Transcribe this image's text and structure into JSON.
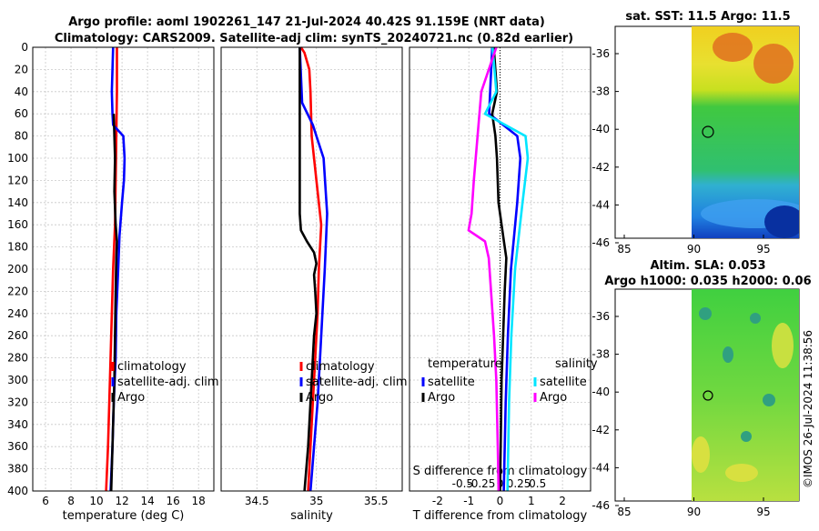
{
  "title": {
    "line1": "Argo profile: aoml 1902261_147 21-Jul-2024 40.42S 91.159E (NRT data)",
    "line2": "Climatology: CARS2009. Satellite-adj clim: synTS_20240721.nc (0.82d earlier)"
  },
  "colors": {
    "climatology": "#ff0000",
    "satellite": "#0000ff",
    "argo": "#000000",
    "sat_salinity": "#00e5ff",
    "argo_salinity": "#ff00ff"
  },
  "depth_ticks": [
    "0",
    "20",
    "40",
    "60",
    "80",
    "100",
    "120",
    "140",
    "160",
    "180",
    "200",
    "220",
    "240",
    "260",
    "280",
    "300",
    "320",
    "340",
    "360",
    "380",
    "400"
  ],
  "chart_data": [
    {
      "type": "line",
      "panel": "temperature",
      "xlabel": "temperature (deg C)",
      "xlim": [
        5,
        19.2
      ],
      "xticks": [
        "6",
        "8",
        "10",
        "12",
        "14",
        "16",
        "18"
      ],
      "ylim": [
        0,
        400
      ],
      "grid": true,
      "legend": {
        "position": "lower-right",
        "entries": [
          "climatology",
          "satellite-adj. clim",
          "Argo"
        ]
      },
      "series": [
        {
          "name": "climatology",
          "color": "#ff0000",
          "depth": [
            0,
            40,
            80,
            120,
            160,
            200,
            240,
            280,
            320,
            360,
            400
          ],
          "values": [
            11.6,
            11.6,
            11.55,
            11.5,
            11.45,
            11.3,
            11.2,
            11.1,
            11.0,
            10.9,
            10.75
          ]
        },
        {
          "name": "satellite-adj. clim",
          "color": "#0000ff",
          "depth": [
            0,
            40,
            60,
            70,
            80,
            100,
            120,
            140,
            170,
            200,
            240,
            280,
            320,
            360,
            400
          ],
          "values": [
            11.3,
            11.2,
            11.25,
            11.3,
            12.1,
            12.2,
            12.15,
            12.0,
            11.8,
            11.7,
            11.55,
            11.5,
            11.35,
            11.25,
            11.1
          ]
        },
        {
          "name": "Argo",
          "color": "#000000",
          "depth": [
            60,
            80,
            100,
            130,
            160,
            175,
            190,
            220,
            260,
            300,
            340,
            380,
            400
          ],
          "values": [
            11.35,
            11.4,
            11.45,
            11.4,
            11.5,
            11.6,
            11.55,
            11.5,
            11.45,
            11.4,
            11.3,
            11.2,
            11.15
          ]
        }
      ]
    },
    {
      "type": "line",
      "panel": "salinity",
      "xlabel": "salinity",
      "xlim": [
        34.2,
        35.72
      ],
      "xticks": [
        "34.5",
        "35",
        "35.5"
      ],
      "ylim": [
        0,
        400
      ],
      "grid": true,
      "legend": {
        "position": "lower-right",
        "entries": [
          "climatology",
          "satellite-adj. clim",
          "Argo"
        ]
      },
      "series": [
        {
          "name": "climatology",
          "color": "#ff0000",
          "depth": [
            0,
            5,
            20,
            40,
            80,
            120,
            160,
            200,
            240,
            280,
            320,
            360,
            400
          ],
          "values": [
            34.87,
            34.9,
            34.94,
            34.95,
            34.96,
            35.0,
            35.04,
            35.02,
            35.01,
            34.99,
            34.97,
            34.95,
            34.93
          ]
        },
        {
          "name": "satellite-adj. clim",
          "color": "#0000ff",
          "depth": [
            0,
            50,
            70,
            80,
            100,
            150,
            200,
            240,
            280,
            320,
            360,
            400
          ],
          "values": [
            34.86,
            34.88,
            34.97,
            35.0,
            35.06,
            35.09,
            35.07,
            35.05,
            35.03,
            35.01,
            34.98,
            34.95
          ]
        },
        {
          "name": "Argo",
          "color": "#000000",
          "depth": [
            0,
            50,
            100,
            150,
            165,
            175,
            185,
            195,
            205,
            220,
            240,
            260,
            280,
            320,
            360,
            400
          ],
          "values": [
            34.86,
            34.86,
            34.86,
            34.86,
            34.87,
            34.92,
            34.98,
            35.0,
            34.98,
            34.99,
            35.0,
            34.98,
            34.97,
            34.95,
            34.93,
            34.9
          ]
        }
      ]
    },
    {
      "type": "line",
      "panel": "difference",
      "xlabel": "T difference from climatology",
      "x2label": "S difference from climatology",
      "xlim": [
        -2.9,
        2.9
      ],
      "xticks": [
        "-2",
        "-1",
        "0",
        "1",
        "2"
      ],
      "x2ticks": [
        "-0.5",
        "-0.25",
        "0",
        "0.25",
        "0.5"
      ],
      "ylim": [
        0,
        400
      ],
      "grid": true,
      "legend": {
        "position": "lower",
        "temperature_title": "temperature",
        "salinity_title": "salinity",
        "temperature_entries": [
          "satellite",
          "Argo"
        ],
        "salinity_entries": [
          "satellite",
          "Argo"
        ]
      },
      "series": [
        {
          "name": "temperature satellite",
          "color": "#0000ff",
          "depth": [
            0,
            60,
            80,
            100,
            140,
            200,
            260,
            320,
            400
          ],
          "values": [
            -0.25,
            -0.35,
            0.55,
            0.65,
            0.55,
            0.35,
            0.25,
            0.18,
            0.12
          ]
        },
        {
          "name": "temperature Argo",
          "color": "#000000",
          "depth": [
            0,
            40,
            60,
            80,
            100,
            140,
            170,
            190,
            220,
            260,
            300,
            360,
            400
          ],
          "values": [
            -0.2,
            -0.1,
            -0.25,
            -0.15,
            -0.1,
            -0.05,
            0.1,
            0.2,
            0.15,
            0.1,
            0.05,
            0.02,
            0.0
          ]
        },
        {
          "name": "salinity satellite",
          "color": "#00e5ff",
          "depth": [
            0,
            40,
            60,
            80,
            100,
            140,
            200,
            260,
            320,
            400
          ],
          "values": [
            -0.1,
            -0.05,
            -0.2,
            0.34,
            0.37,
            0.3,
            0.2,
            0.15,
            0.12,
            0.1
          ]
        },
        {
          "name": "salinity Argo",
          "color": "#ff00ff",
          "depth": [
            0,
            40,
            80,
            120,
            150,
            165,
            175,
            190,
            220,
            260,
            300,
            360,
            400
          ],
          "values": [
            -0.05,
            -0.25,
            -0.3,
            -0.35,
            -0.38,
            -0.42,
            -0.2,
            -0.15,
            -0.12,
            -0.08,
            -0.05,
            -0.03,
            -0.02
          ]
        }
      ]
    }
  ],
  "maps": {
    "sst": {
      "title": "sat. SST: 11.5 Argo: 11.5",
      "yticks": [
        "-36",
        "-38",
        "-40",
        "-42",
        "-44",
        "-46"
      ],
      "xticks": [
        "85",
        "90",
        "95"
      ]
    },
    "sla": {
      "title1": "Altim. SLA: 0.053",
      "title2": "Argo h1000: 0.035 h2000: 0.06",
      "yticks": [
        "-36",
        "-38",
        "-40",
        "-42",
        "-44",
        "-46"
      ],
      "xticks": [
        "85",
        "90",
        "95"
      ]
    }
  },
  "watermark": "©IMOS 26-Jul-2024 11:38:56"
}
